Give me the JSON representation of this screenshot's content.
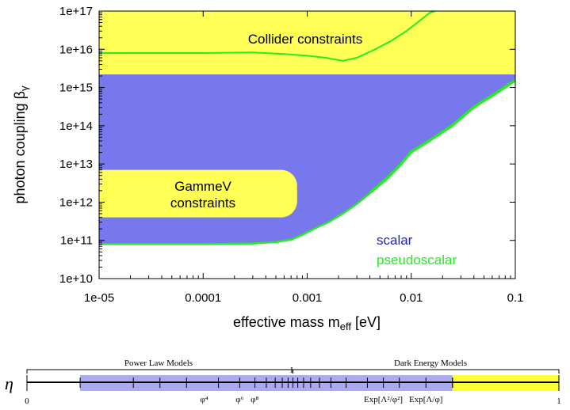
{
  "colors": {
    "collider": "#ffff55",
    "gammev": "#ffff55",
    "scalar": "#7777ee",
    "pseudoscalar": "#22ee22",
    "scalar_text": "#2222aa",
    "eta_band_power": "#aaaaee",
    "eta_band_dark": "#ffff33"
  },
  "chart_data": [
    {
      "type": "area",
      "xlabel": "effective mass m",
      "xlabel_sub": "eff",
      "xlabel_unit": " [eV]",
      "ylabel": "photon coupling β",
      "ylabel_sub": "γ",
      "xscale": "log",
      "yscale": "log",
      "xlim": [
        1e-05,
        0.1
      ],
      "ylim": [
        10000000000.0,
        1e+17
      ],
      "x_ticks": [
        {
          "value": 1e-05,
          "label": "1e-05"
        },
        {
          "value": 0.0001,
          "label": "0.0001"
        },
        {
          "value": 0.001,
          "label": "0.001"
        },
        {
          "value": 0.01,
          "label": "0.01"
        },
        {
          "value": 0.1,
          "label": "0.1"
        }
      ],
      "y_ticks": [
        {
          "value": 10000000000.0,
          "label": "1e+10"
        },
        {
          "value": 100000000000.0,
          "label": "1e+11"
        },
        {
          "value": 1000000000000.0,
          "label": "1e+12"
        },
        {
          "value": 10000000000000.0,
          "label": "1e+13"
        },
        {
          "value": 100000000000000.0,
          "label": "1e+14"
        },
        {
          "value": 1000000000000000.0,
          "label": "1e+15"
        },
        {
          "value": 1e+16,
          "label": "1e+16"
        },
        {
          "value": 1e+17,
          "label": "1e+17"
        }
      ],
      "regions": [
        {
          "name": "Collider constraints",
          "y_range": [
            2200000000000000.0,
            1e+17
          ],
          "x_range": [
            1e-05,
            0.1
          ]
        },
        {
          "name": "GammeV constraints",
          "label_line1": "GammeV",
          "label_line2": "constraints",
          "y_range": [
            400000000000.0,
            7000000000000.0
          ],
          "x_range": [
            1e-05,
            0.0008
          ]
        }
      ],
      "series": [
        {
          "name": "scalar",
          "lower_boundary": {
            "x": [
              1e-05,
              0.0001,
              0.0003,
              0.0005,
              0.0007,
              0.0009,
              0.0012,
              0.0016,
              0.0022,
              0.003,
              0.004,
              0.0055,
              0.0075,
              0.01,
              0.015,
              0.025,
              0.04,
              0.06,
              0.08,
              0.1
            ],
            "y": [
              80000000000.0,
              80000000000.0,
              83000000000.0,
              90000000000.0,
              105000000000.0,
              140000000000.0,
              210000000000.0,
              300000000000.0,
              500000000000.0,
              900000000000.0,
              1700000000000.0,
              3500000000000.0,
              8000000000000.0,
              20000000000000.0,
              40000000000000.0,
              100000000000000.0,
              300000000000000.0,
              600000000000000.0,
              1000000000000000.0,
              1500000000000000.0
            ]
          }
        },
        {
          "name": "pseudoscalar",
          "upper_boundary": {
            "x": [
              1e-05,
              0.0001,
              0.0003,
              0.0006,
              0.001,
              0.0015,
              0.0022,
              0.003,
              0.0045,
              0.0065,
              0.009,
              0.012,
              0.015,
              0.017
            ],
            "y": [
              8000000000000000.0,
              8000000000000000.0,
              8300000000000000.0,
              7500000000000000.0,
              6800000000000000.0,
              6000000000000000.0,
              5000000000000000.0,
              6000000000000000.0,
              1e+16,
              1.7e+16,
              3e+16,
              5.5e+16,
              9e+16,
              1e+17
            ]
          }
        }
      ],
      "legend_placement": "bottom-right"
    },
    {
      "type": "scatter",
      "title": "η",
      "xlim": [
        0,
        1
      ],
      "x_ticks": [
        {
          "value": 0,
          "label": "0"
        },
        {
          "value": 1,
          "label": "1"
        }
      ],
      "bands": [
        {
          "name": "Power Law Models",
          "x_range": [
            0.1,
            0.5
          ]
        },
        {
          "name": "Dark Energy Models",
          "x_range": [
            0.5,
            1.0
          ]
        }
      ],
      "midpoint_label": "I",
      "markers": [
        {
          "value": 0.333,
          "label": "φ⁴"
        },
        {
          "value": 0.4,
          "label": "φ⁶"
        },
        {
          "value": 0.429,
          "label": "φ⁸"
        },
        {
          "value": 0.667,
          "label": "Exp[Λ²/φ²]"
        },
        {
          "value": 0.75,
          "label": "Exp[Λ/φ]"
        }
      ]
    }
  ]
}
